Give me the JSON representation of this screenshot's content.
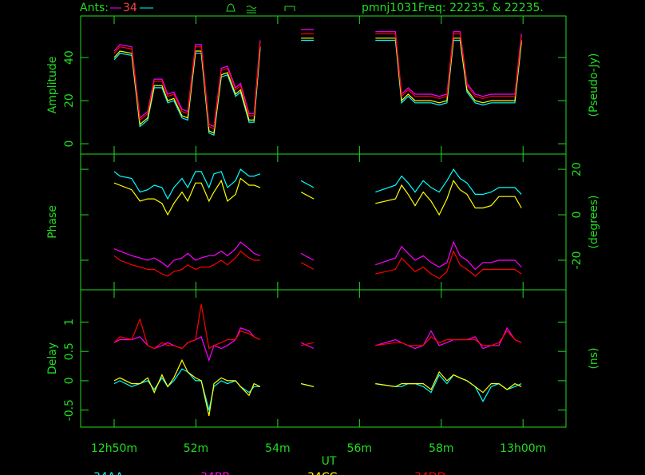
{
  "header": {
    "ants_label": "Ants:",
    "ants": "34",
    "source": "pmnj1031",
    "freq": "Freq: 22235. & 22235."
  },
  "chart_data": {
    "type": "line",
    "x": [
      50,
      50.14,
      50.43,
      50.63,
      50.82,
      50.98,
      51.17,
      51.31,
      51.46,
      51.66,
      51.8,
      51.99,
      52.13,
      52.32,
      52.44,
      52.62,
      52.77,
      52.97,
      53.09,
      53.3,
      53.42,
      53.57,
      54,
      54.57,
      54.88,
      55.5,
      56.39,
      56.88,
      57.03,
      57.19,
      57.36,
      57.56,
      57.75,
      57.95,
      58.14,
      58.3,
      58.46,
      58.63,
      58.83,
      59.02,
      59.22,
      59.41,
      59.61,
      59.8,
      59.96
    ],
    "xlim": [
      49.18,
      61.05
    ],
    "xticks": [
      {
        "value": 50,
        "label": "12h50m"
      },
      {
        "value": 52,
        "label": "52m"
      },
      {
        "value": 54,
        "label": "54m"
      },
      {
        "value": 56,
        "label": "56m"
      },
      {
        "value": 58,
        "label": "58m"
      },
      {
        "value": 60,
        "label": "13h00m"
      }
    ],
    "xlabel": "UT",
    "grid": false,
    "panels": [
      {
        "ylabel": "Amplitude",
        "y2label": "(Pseudo-Jy)",
        "tick_side": "left",
        "ylim": [
          -4.8,
          59.3
        ],
        "yticks": [
          0,
          20,
          40
        ],
        "series": [
          {
            "color": "#00ffff",
            "values": [
              39,
              42,
              41,
              8,
              11,
              26,
              26,
              19,
              20,
              12,
              11,
              42,
              42,
              5,
              4,
              31,
              32,
              22,
              24,
              10,
              10,
              44,
              null,
              48,
              48,
              null,
              48,
              48,
              19,
              22,
              19,
              19,
              19,
              18,
              19,
              48,
              48,
              24,
              19,
              18,
              19,
              19,
              19,
              19,
              47
            ]
          },
          {
            "color": "#ff00ff",
            "values": [
              43,
              46,
              45,
              12,
              15,
              30,
              30,
              23,
              24,
              16,
              15,
              46,
              46,
              9,
              8,
              35,
              36,
              26,
              28,
              14,
              14,
              48,
              null,
              53,
              53,
              null,
              52,
              52,
              23,
              26,
              23,
              23,
              23,
              22,
              23,
              52,
              52,
              28,
              23,
              22,
              23,
              23,
              23,
              23,
              51
            ]
          },
          {
            "color": "#ffff00",
            "values": [
              40,
              43,
              42,
              9,
              12,
              27,
              27,
              20,
              21,
              13,
              12,
              43,
              43,
              6,
              5,
              32,
              33,
              23,
              25,
              11,
              11,
              45,
              null,
              49,
              49,
              null,
              49,
              49,
              20,
              23,
              20,
              20,
              20,
              19,
              20,
              49,
              49,
              25,
              20,
              19,
              20,
              20,
              20,
              20,
              48
            ]
          },
          {
            "color": "#ff0000",
            "values": [
              42,
              45,
              44,
              11,
              14,
              29,
              29,
              22,
              23,
              15,
              14,
              45,
              45,
              8,
              7,
              34,
              35,
              25,
              27,
              13,
              13,
              47,
              null,
              51,
              51,
              null,
              51,
              51,
              22,
              25,
              22,
              22,
              22,
              21,
              22,
              51,
              51,
              27,
              22,
              21,
              22,
              22,
              22,
              22,
              50
            ]
          }
        ]
      },
      {
        "ylabel": "Phase",
        "y2label": "(degrees)",
        "tick_side": "right",
        "ylim": [
          -33,
          26.7
        ],
        "yticks": [
          -20,
          0,
          20
        ],
        "series": [
          {
            "color": "#00ffff",
            "values": [
              19,
              17,
              16,
              10,
              11,
              13,
              12,
              7,
              12,
              16,
              12,
              19,
              19,
              12,
              18,
              19,
              12,
              15,
              20,
              17,
              17,
              18,
              null,
              15,
              12,
              null,
              10,
              13,
              17,
              14,
              10,
              15,
              12,
              10,
              15,
              20,
              16,
              14,
              9,
              9,
              10,
              12,
              12,
              12,
              9
            ]
          },
          {
            "color": "#ff00ff",
            "values": [
              -15,
              -16,
              -18,
              -19,
              -20,
              -19,
              -21,
              -23,
              -20,
              -19,
              -17,
              -20,
              -19,
              -18,
              -18,
              -16,
              -18,
              -15,
              -12,
              -15,
              -17,
              -18,
              null,
              -17,
              -20,
              null,
              -22,
              -19,
              -14,
              -17,
              -20,
              -18,
              -21,
              -23,
              -21,
              -12,
              -18,
              -20,
              -24,
              -21,
              -21,
              -20,
              -20,
              -20,
              -23
            ]
          },
          {
            "color": "#ffff00",
            "values": [
              14,
              13,
              11,
              6,
              7,
              7,
              5,
              0,
              5,
              10,
              6,
              14,
              14,
              6,
              10,
              15,
              6,
              9,
              16,
              13,
              13,
              12,
              null,
              10,
              7,
              null,
              5,
              7,
              13,
              9,
              4,
              10,
              6,
              0,
              7,
              15,
              11,
              9,
              3,
              3,
              4,
              8,
              8,
              8,
              3
            ]
          },
          {
            "color": "#ff0000",
            "values": [
              -18,
              -20,
              -22,
              -23,
              -24,
              -24,
              -26,
              -27,
              -25,
              -24,
              -22,
              -24,
              -23,
              -23,
              -22,
              -20,
              -22,
              -19,
              -16,
              -19,
              -20,
              -20,
              null,
              -21,
              -24,
              null,
              -26,
              -24,
              -19,
              -22,
              -25,
              -23,
              -26,
              -28,
              -25,
              -16,
              -22,
              -24,
              -27,
              -24,
              -24,
              -24,
              -24,
              -24,
              -26
            ]
          }
        ]
      },
      {
        "ylabel": "Delay",
        "y2label": "(ns)",
        "tick_side": "left",
        "ylim": [
          -0.79,
          1.55
        ],
        "yticks": [
          -0.5,
          0,
          0.5,
          1
        ],
        "series": [
          {
            "name": "34AA",
            "color": "#00ffff",
            "values": [
              -0.05,
              0,
              -0.1,
              -0.05,
              0,
              -0.15,
              0.05,
              -0.1,
              0,
              0.2,
              0.15,
              0,
              0,
              -0.5,
              -0.1,
              0,
              -0.05,
              0,
              -0.1,
              -0.2,
              -0.1,
              -0.1,
              null,
              -0.05,
              -0.1,
              null,
              -0.05,
              -0.1,
              -0.1,
              -0.05,
              -0.05,
              -0.1,
              -0.2,
              0.1,
              -0.05,
              0.1,
              0.05,
              0,
              -0.1,
              -0.35,
              -0.1,
              -0.05,
              -0.15,
              -0.1,
              -0.05
            ]
          },
          {
            "name": "34BB",
            "color": "#ff00ff",
            "values": [
              0.65,
              0.7,
              0.7,
              0.75,
              0.6,
              0.55,
              0.6,
              0.65,
              0.6,
              0.55,
              0.65,
              0.7,
              0.75,
              0.35,
              0.6,
              0.55,
              0.6,
              0.7,
              0.9,
              0.85,
              0.75,
              0.7,
              null,
              0.65,
              0.55,
              null,
              0.6,
              0.7,
              0.65,
              0.6,
              0.55,
              0.6,
              0.85,
              0.6,
              0.65,
              0.7,
              0.7,
              0.7,
              0.75,
              0.55,
              0.6,
              0.6,
              0.9,
              0.7,
              0.65
            ]
          },
          {
            "name": "34CC",
            "color": "#ffff00",
            "values": [
              0,
              0.05,
              -0.05,
              -0.05,
              0.05,
              -0.2,
              0.1,
              -0.1,
              0.05,
              0.35,
              0.15,
              0.05,
              0,
              -0.6,
              -0.05,
              0.05,
              0,
              0,
              -0.1,
              -0.25,
              -0.05,
              -0.1,
              null,
              -0.05,
              -0.1,
              null,
              -0.05,
              -0.1,
              -0.05,
              -0.05,
              -0.05,
              -0.05,
              -0.15,
              0.15,
              0,
              0.1,
              0.05,
              0,
              -0.1,
              -0.2,
              -0.05,
              -0.05,
              -0.15,
              -0.05,
              -0.1
            ]
          },
          {
            "name": "34DD",
            "color": "#ff0000",
            "values": [
              0.65,
              0.75,
              0.7,
              1.05,
              0.6,
              0.55,
              0.65,
              0.6,
              0.6,
              0.55,
              0.65,
              0.7,
              1.3,
              0.55,
              0.6,
              0.65,
              0.7,
              0.7,
              0.85,
              0.8,
              0.75,
              0.7,
              null,
              0.6,
              0.65,
              null,
              0.6,
              0.65,
              0.65,
              0.6,
              0.6,
              0.6,
              0.75,
              0.65,
              0.7,
              0.7,
              0.7,
              0.7,
              0.7,
              0.6,
              0.6,
              0.65,
              0.85,
              0.7,
              0.65
            ]
          }
        ]
      }
    ]
  }
}
